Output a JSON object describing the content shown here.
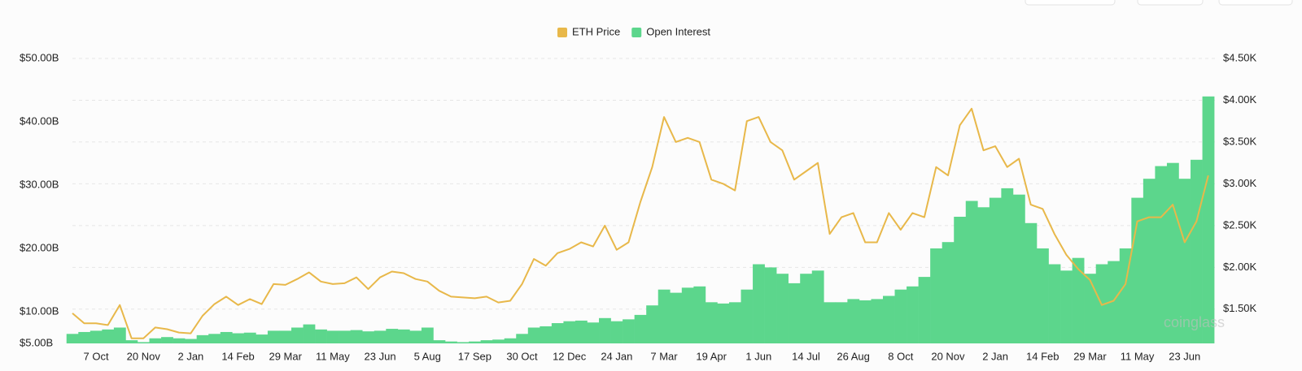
{
  "chart_data": {
    "type": "combo",
    "categories": [
      null,
      null,
      "7 Oct",
      null,
      null,
      null,
      "20 Nov",
      null,
      null,
      null,
      "2 Jan",
      null,
      null,
      null,
      "14 Feb",
      null,
      null,
      null,
      "29 Mar",
      null,
      null,
      null,
      "11 May",
      null,
      null,
      null,
      "23 Jun",
      null,
      null,
      null,
      "5 Aug",
      null,
      null,
      null,
      "17 Sep",
      null,
      null,
      null,
      "30 Oct",
      null,
      null,
      null,
      "12 Dec",
      null,
      null,
      null,
      "24 Jan",
      null,
      null,
      null,
      "7 Mar",
      null,
      null,
      null,
      "19 Apr",
      null,
      null,
      null,
      "1 Jun",
      null,
      null,
      null,
      "14 Jul",
      null,
      null,
      null,
      "26 Aug",
      null,
      null,
      null,
      "8 Oct",
      null,
      null,
      null,
      "20 Nov",
      null,
      null,
      null,
      "2 Jan",
      null,
      null,
      null,
      "14 Feb",
      null,
      null,
      null,
      "29 Mar",
      null,
      null,
      null,
      "11 May",
      null,
      null,
      null,
      "23 Jun",
      null,
      null
    ],
    "series": [
      {
        "name": "ETH Price",
        "type": "line",
        "axis": "y2",
        "color": "#e8b84a",
        "values": [
          1450,
          1330,
          1330,
          1310,
          1550,
          1150,
          1150,
          1280,
          1260,
          1220,
          1210,
          1420,
          1560,
          1650,
          1550,
          1620,
          1560,
          1800,
          1790,
          1860,
          1940,
          1830,
          1800,
          1810,
          1880,
          1740,
          1880,
          1950,
          1930,
          1860,
          1830,
          1720,
          1650,
          1640,
          1630,
          1650,
          1580,
          1600,
          1800,
          2100,
          2020,
          2170,
          2220,
          2300,
          2250,
          2500,
          2210,
          2300,
          2780,
          3200,
          3800,
          3500,
          3550,
          3500,
          3050,
          3000,
          2920,
          3750,
          3800,
          3500,
          3400,
          3050,
          3150,
          3250,
          2400,
          2600,
          2650,
          2300,
          2300,
          2650,
          2450,
          2650,
          2600,
          3200,
          3100,
          3700,
          3900,
          3400,
          3450,
          3200,
          3300,
          2750,
          2700,
          2400,
          2150,
          1980,
          1850,
          1550,
          1600,
          1800,
          2550,
          2600,
          2600,
          2750,
          2300,
          2550,
          3100
        ]
      },
      {
        "name": "Open Interest",
        "type": "bar",
        "axis": "y",
        "color": "#5cd68c",
        "values": [
          6.5,
          6.8,
          7.0,
          7.2,
          7.5,
          5.5,
          5.2,
          5.8,
          6.0,
          5.8,
          5.7,
          6.3,
          6.5,
          6.8,
          6.6,
          6.7,
          6.4,
          7.0,
          7.0,
          7.5,
          8.0,
          7.2,
          7.0,
          7.0,
          7.1,
          6.9,
          7.0,
          7.3,
          7.2,
          7.0,
          7.5,
          5.5,
          5.3,
          5.2,
          5.3,
          5.5,
          5.6,
          5.8,
          6.5,
          7.5,
          7.7,
          8.2,
          8.5,
          8.6,
          8.3,
          9.0,
          8.5,
          8.8,
          9.5,
          11.0,
          13.5,
          13.0,
          13.8,
          14.0,
          11.5,
          11.3,
          11.5,
          13.5,
          17.5,
          17.0,
          16.0,
          14.5,
          16.0,
          16.5,
          11.5,
          11.5,
          12.0,
          11.8,
          12.0,
          12.5,
          13.5,
          14.0,
          15.5,
          20.0,
          21.0,
          25.0,
          27.5,
          26.5,
          28.0,
          29.5,
          28.5,
          24.0,
          20.0,
          17.5,
          16.5,
          18.5,
          16.0,
          17.5,
          18.0,
          20.0,
          28.0,
          31.0,
          33.0,
          33.5,
          31.0,
          34.0,
          44.0
        ]
      }
    ],
    "ylim": [
      5,
      50
    ],
    "yticks": [
      {
        "value": 5,
        "label": "$5.00B"
      },
      {
        "value": 10,
        "label": "$10.00B"
      },
      {
        "value": 20,
        "label": "$20.00B"
      },
      {
        "value": 30,
        "label": "$30.00B"
      },
      {
        "value": 40,
        "label": "$40.00B"
      },
      {
        "value": 50,
        "label": "$50.00B"
      }
    ],
    "y2lim": [
      1090,
      4500
    ],
    "y2ticks": [
      {
        "value": 1500,
        "label": "$1.50K"
      },
      {
        "value": 2000,
        "label": "$2.00K"
      },
      {
        "value": 2500,
        "label": "$2.50K"
      },
      {
        "value": 3000,
        "label": "$3.00K"
      },
      {
        "value": 3500,
        "label": "$3.50K"
      },
      {
        "value": 4000,
        "label": "$4.00K"
      },
      {
        "value": 4500,
        "label": "$4.50K"
      }
    ],
    "grid": true,
    "legend": "top",
    "watermark": "coinglass"
  }
}
